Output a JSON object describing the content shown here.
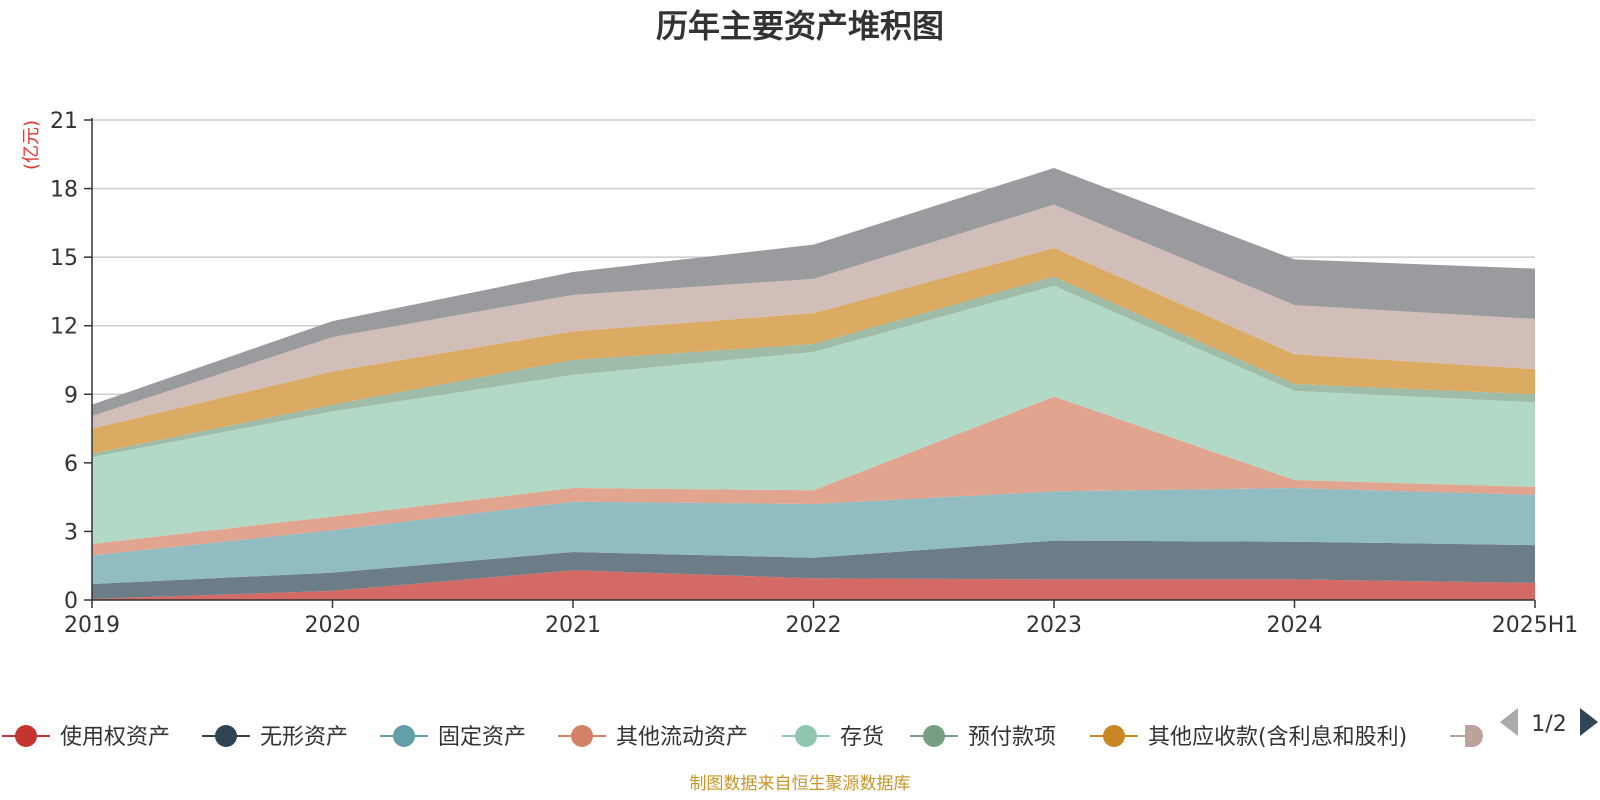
{
  "chart_data": {
    "type": "area",
    "stacked": true,
    "title": "历年主要资产堆积图",
    "unit": "(亿元)",
    "categories": [
      "2019",
      "2020",
      "2021",
      "2022",
      "2023",
      "2024",
      "2025H1"
    ],
    "ylim": [
      0,
      21
    ],
    "yticks": [
      0,
      3,
      6,
      9,
      12,
      15,
      18,
      21
    ],
    "grid": true,
    "legend_position": "bottom",
    "legend_page": "1/2",
    "series": [
      {
        "name": "使用权资产",
        "color": "#c23531",
        "fill": "#d46a66",
        "values": [
          0.05,
          0.4,
          1.3,
          0.95,
          0.9,
          0.9,
          0.75
        ]
      },
      {
        "name": "无形资产",
        "color": "#2f4554",
        "fill": "#6d7d88",
        "values": [
          0.65,
          0.8,
          0.8,
          0.9,
          1.7,
          1.65,
          1.65
        ]
      },
      {
        "name": "固定资产",
        "color": "#61a0a8",
        "fill": "#90bcc2",
        "values": [
          1.25,
          1.85,
          2.2,
          2.35,
          2.15,
          2.35,
          2.2
        ]
      },
      {
        "name": "其他流动资产",
        "color": "#d48265",
        "fill": "#e1a58f",
        "values": [
          0.5,
          0.6,
          0.6,
          0.6,
          4.15,
          0.35,
          0.35
        ]
      },
      {
        "name": "存货",
        "color": "#91c7ae",
        "fill": "#b2d8c6",
        "values": [
          3.8,
          4.6,
          4.95,
          6.05,
          4.85,
          3.9,
          3.7
        ]
      },
      {
        "name": "预付款项",
        "color": "#749f83",
        "fill": "#9ebca8",
        "values": [
          0.15,
          0.3,
          0.65,
          0.35,
          0.4,
          0.3,
          0.35
        ]
      },
      {
        "name": "其他应收款(含利息和股利)",
        "color": "#ca8622",
        "fill": "#dbab64",
        "values": [
          1.1,
          1.45,
          1.25,
          1.35,
          1.25,
          1.3,
          1.1
        ]
      },
      {
        "name": "",
        "color": "#bda29a",
        "fill": "#d1beb8",
        "values": [
          0.55,
          1.5,
          1.6,
          1.5,
          1.9,
          2.15,
          2.2
        ]
      },
      {
        "name": "",
        "color": "#6e7074",
        "fill": "#9a9b9e",
        "values": [
          0.5,
          0.7,
          1.0,
          1.5,
          1.6,
          2.0,
          2.2
        ]
      }
    ]
  },
  "footer": "制图数据来自恒生聚源数据库",
  "icons": {
    "prev": "triangle-left-icon",
    "next": "triangle-right-icon"
  }
}
